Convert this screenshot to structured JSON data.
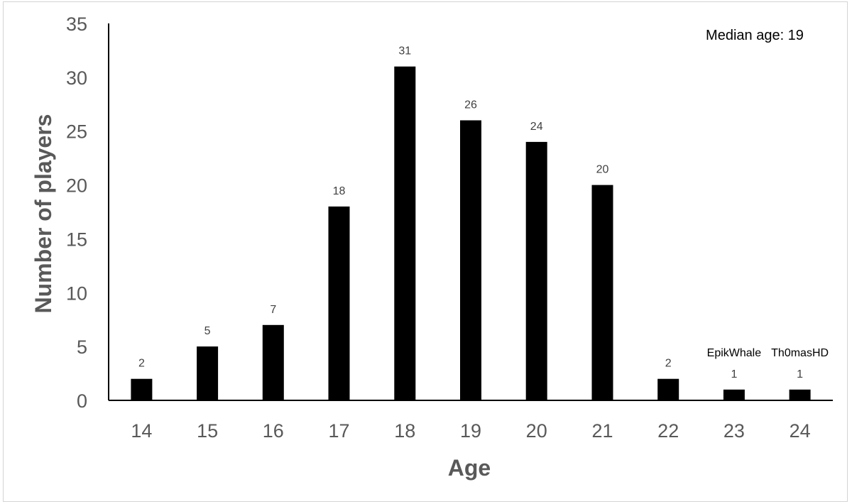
{
  "chart_data": {
    "type": "bar",
    "categories": [
      "14",
      "15",
      "16",
      "17",
      "18",
      "19",
      "20",
      "21",
      "22",
      "23",
      "24"
    ],
    "values": [
      2,
      5,
      7,
      18,
      31,
      26,
      24,
      20,
      2,
      1,
      1
    ],
    "xlabel": "Age",
    "ylabel": "Number of players",
    "ylim": [
      0,
      35
    ],
    "yticks": [
      "0",
      "5",
      "10",
      "15",
      "20",
      "25",
      "30",
      "35"
    ],
    "grid": false,
    "bar_color": "#000000",
    "annotation": "Median age: 19",
    "bar_annotations": [
      {
        "category": "23",
        "text": "EpikWhale"
      },
      {
        "category": "24",
        "text": "Th0masHD"
      }
    ]
  }
}
